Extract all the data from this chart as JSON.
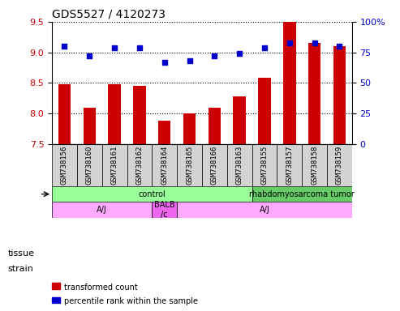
{
  "title": "GDS5527 / 4120273",
  "samples": [
    "GSM738156",
    "GSM738160",
    "GSM738161",
    "GSM738162",
    "GSM738164",
    "GSM738165",
    "GSM738166",
    "GSM738163",
    "GSM738155",
    "GSM738157",
    "GSM738158",
    "GSM738159"
  ],
  "transformed_count": [
    8.48,
    8.1,
    8.48,
    8.45,
    7.88,
    8.0,
    8.1,
    8.28,
    8.58,
    9.5,
    9.15,
    9.1
  ],
  "percentile_rank": [
    80,
    72,
    79,
    79,
    67,
    68,
    72,
    74,
    79,
    83,
    83,
    80
  ],
  "ylim_left": [
    7.5,
    9.5
  ],
  "ylim_right": [
    0,
    100
  ],
  "yticks_left": [
    7.5,
    8.0,
    8.5,
    9.0,
    9.5
  ],
  "yticks_right": [
    0,
    25,
    50,
    75,
    100
  ],
  "bar_color": "#cc0000",
  "dot_color": "#0000cc",
  "tissue_groups": [
    {
      "label": "control",
      "start": 0,
      "end": 8,
      "color": "#99ff99"
    },
    {
      "label": "rhabdomyosarcoma tumor",
      "start": 8,
      "end": 12,
      "color": "#66cc66"
    }
  ],
  "strain_groups": [
    {
      "label": "A/J",
      "start": 0,
      "end": 4,
      "color": "#ffaaff"
    },
    {
      "label": "BALB\n/c",
      "start": 4,
      "end": 5,
      "color": "#ee66ee"
    },
    {
      "label": "A/J",
      "start": 5,
      "end": 12,
      "color": "#ffaaff"
    }
  ],
  "tissue_label": "tissue",
  "strain_label": "strain",
  "legend_items": [
    {
      "label": "transformed count",
      "color": "#cc0000"
    },
    {
      "label": "percentile rank within the sample",
      "color": "#0000cc"
    }
  ],
  "dotted_line_color": "#000000",
  "background_color": "#ffffff",
  "plot_bg_color": "#ffffff",
  "tick_label_color_left": "#cc0000",
  "tick_label_color_right": "#0000cc"
}
